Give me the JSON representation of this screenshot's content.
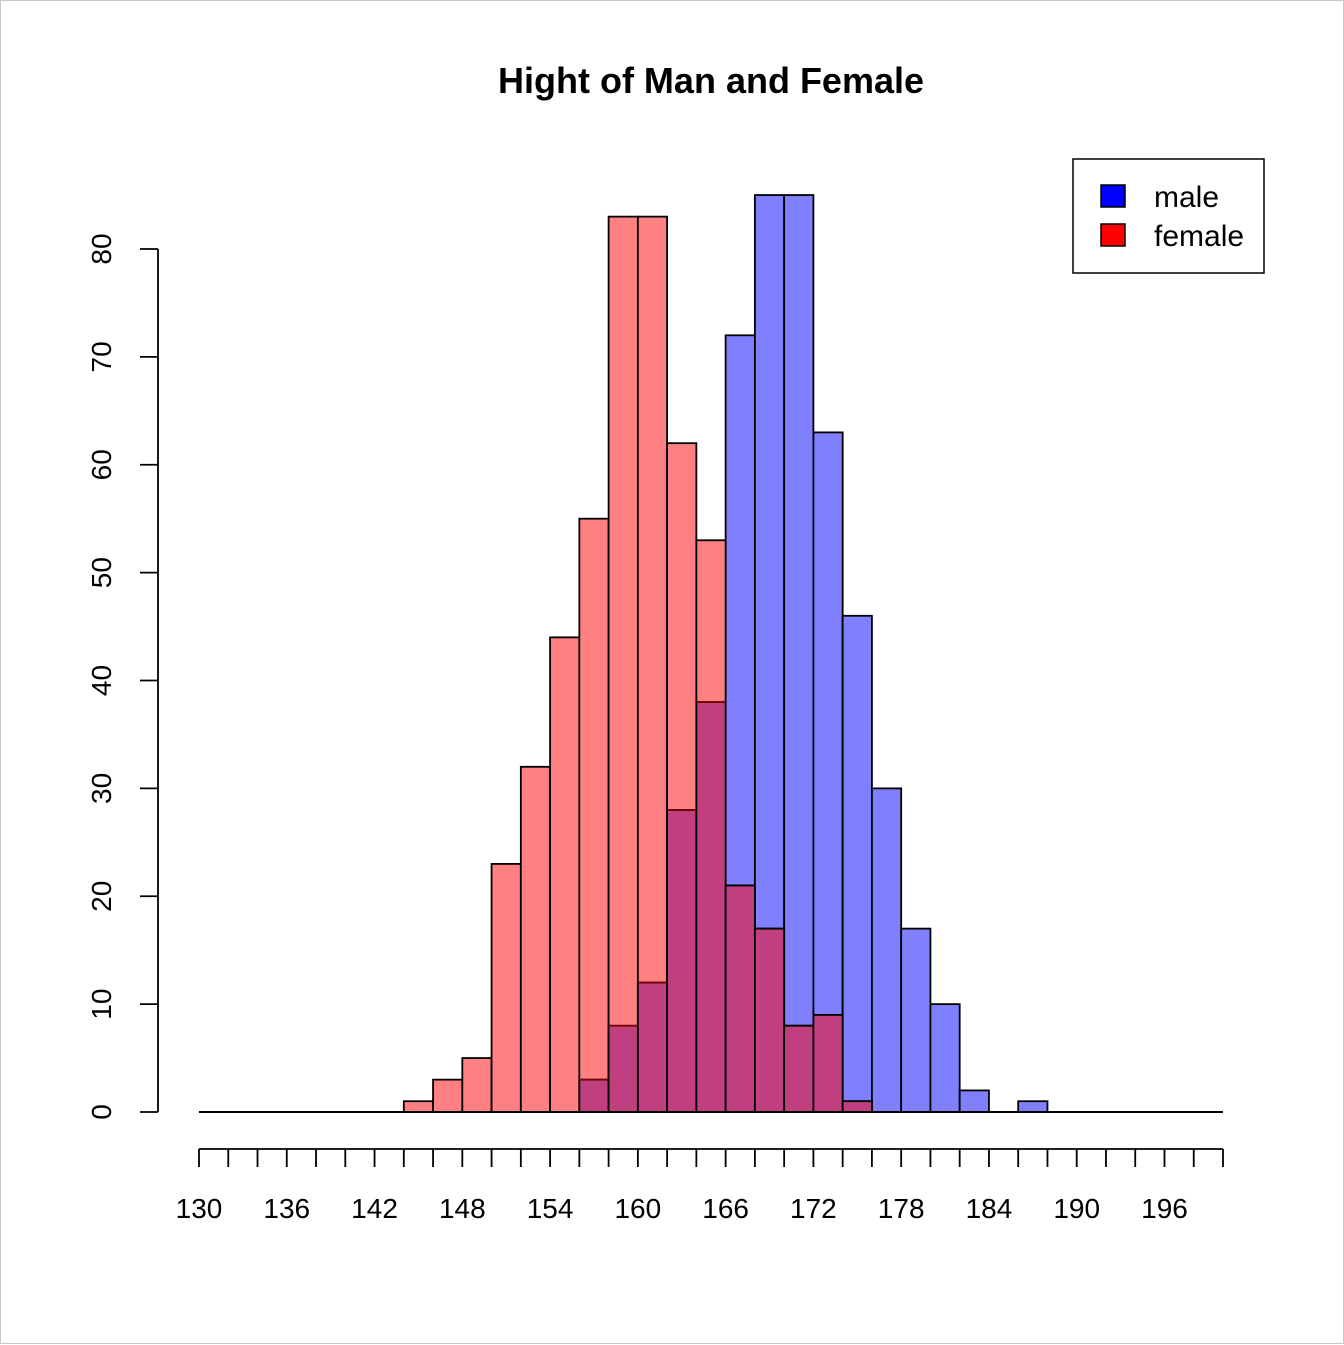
{
  "chart_data": {
    "type": "bar",
    "title": "Hight of Man and Female",
    "xlabel": "",
    "ylabel": "",
    "x_ticks": [
      130,
      132,
      134,
      136,
      138,
      140,
      142,
      144,
      146,
      148,
      150,
      152,
      154,
      156,
      158,
      160,
      162,
      164,
      166,
      168,
      170,
      172,
      174,
      176,
      178,
      180,
      182,
      184,
      186,
      188,
      190,
      192,
      194,
      196,
      198,
      200
    ],
    "x_tick_labels": [
      "130",
      "136",
      "142",
      "148",
      "154",
      "160",
      "166",
      "172",
      "178",
      "184",
      "190",
      "196"
    ],
    "y_ticks": [
      "0",
      "10",
      "20",
      "30",
      "40",
      "50",
      "60",
      "70",
      "80"
    ],
    "xlim": [
      130,
      200
    ],
    "ylim": [
      0,
      80
    ],
    "bin_width": 2,
    "series": [
      {
        "name": "female",
        "color": "#ff0000",
        "fill": "#ff8080",
        "bins": [
          [
            144,
            146,
            1
          ],
          [
            146,
            148,
            3
          ],
          [
            148,
            150,
            5
          ],
          [
            150,
            152,
            23
          ],
          [
            152,
            154,
            32
          ],
          [
            154,
            156,
            44
          ],
          [
            156,
            158,
            55
          ],
          [
            158,
            160,
            83
          ],
          [
            160,
            162,
            83
          ],
          [
            162,
            164,
            62
          ],
          [
            164,
            166,
            53
          ],
          [
            166,
            168,
            21
          ],
          [
            168,
            170,
            17
          ],
          [
            170,
            172,
            8
          ],
          [
            172,
            174,
            9
          ],
          [
            174,
            176,
            1
          ]
        ]
      },
      {
        "name": "male",
        "color": "#0000ff",
        "fill": "#8080ff",
        "bins": [
          [
            156,
            158,
            3
          ],
          [
            158,
            160,
            8
          ],
          [
            160,
            162,
            12
          ],
          [
            162,
            164,
            28
          ],
          [
            164,
            166,
            38
          ],
          [
            166,
            168,
            72
          ],
          [
            168,
            170,
            85
          ],
          [
            170,
            172,
            85
          ],
          [
            172,
            174,
            63
          ],
          [
            174,
            176,
            46
          ],
          [
            176,
            178,
            30
          ],
          [
            178,
            180,
            17
          ],
          [
            180,
            182,
            10
          ],
          [
            182,
            184,
            2
          ],
          [
            186,
            188,
            1
          ]
        ]
      }
    ],
    "legend": {
      "position": "top-right",
      "entries": [
        {
          "label": "male",
          "color": "#0000ff"
        },
        {
          "label": "female",
          "color": "#ff0000"
        }
      ]
    },
    "overlap_fill": "#bf3f7f",
    "grid": false
  }
}
